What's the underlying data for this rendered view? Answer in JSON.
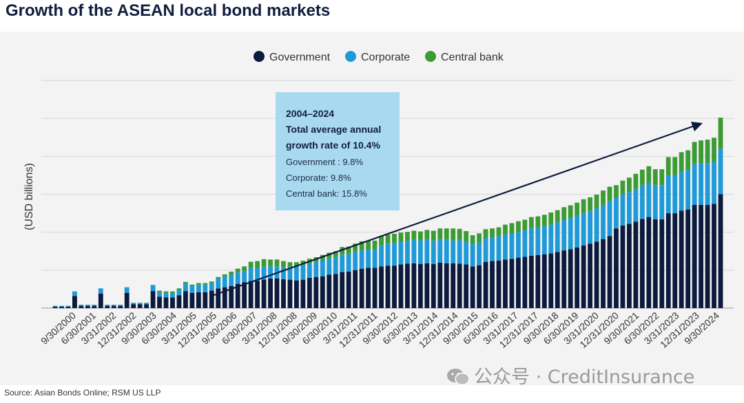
{
  "title": "Growth of the ASEAN local bond markets",
  "source": "Source: Asian Bonds Online; RSM US LLP",
  "watermark": "公众号 · CreditInsurance",
  "colors": {
    "government": "#0b1a3d",
    "corporate": "#1f9ad8",
    "central": "#3d9b35",
    "annotation_box": "#a9d9ef",
    "panel": "#f3f3f3",
    "grid": "#d6d6d6"
  },
  "annotation": {
    "heading": "2004–2024",
    "line2": "Total average annual",
    "line3": "growth rate of 10.4%",
    "gov": "Government : 9.8%",
    "corp": "Corporate: 9.8%",
    "cb": "Central bank: 15.8%"
  },
  "chart_data": {
    "type": "bar",
    "stacked": true,
    "ylabel": "(USD billions)",
    "ylim": [
      0,
      600
    ],
    "grid": true,
    "legend_position": "top-center",
    "series_names": [
      "Government",
      "Corporate",
      "Central bank"
    ],
    "x_tick_labels": [
      "9/30/2000",
      "6/30/2001",
      "3/31/2002",
      "12/31/2002",
      "9/30/2003",
      "6/30/2004",
      "3/31/2005",
      "12/31/2005",
      "9/30/2006",
      "6/30/2007",
      "3/31/2008",
      "12/31/2008",
      "9/30/2009",
      "6/30/2010",
      "3/31/2011",
      "12/31/2011",
      "9/30/2012",
      "6/30/2013",
      "3/31/2014",
      "12/31/2014",
      "9/30/2015",
      "6/30/2016",
      "3/31/2017",
      "12/31/2017",
      "9/30/2018",
      "6/30/2019",
      "3/31/2020",
      "12/31/2020",
      "9/30/2021",
      "6/30/2022",
      "3/31/2023",
      "12/31/2023",
      "9/30/2024"
    ],
    "government": [
      4,
      4,
      4,
      32,
      6,
      6,
      6,
      38,
      6,
      6,
      6,
      40,
      10,
      10,
      10,
      45,
      30,
      28,
      28,
      34,
      45,
      40,
      42,
      42,
      46,
      52,
      55,
      58,
      64,
      68,
      72,
      72,
      75,
      78,
      78,
      76,
      75,
      73,
      75,
      80,
      82,
      84,
      88,
      90,
      95,
      96,
      100,
      104,
      106,
      106,
      110,
      112,
      112,
      115,
      117,
      118,
      116,
      118,
      116,
      120,
      118,
      118,
      117,
      115,
      110,
      113,
      122,
      124,
      125,
      128,
      130,
      133,
      135,
      138,
      140,
      142,
      144,
      148,
      152,
      155,
      160,
      165,
      170,
      175,
      182,
      190,
      210,
      218,
      222,
      228,
      235,
      240,
      234,
      234,
      250,
      250,
      257,
      260,
      272,
      272,
      272,
      275,
      300
    ],
    "corporate": [
      2,
      2,
      2,
      12,
      3,
      3,
      3,
      14,
      3,
      3,
      3,
      15,
      4,
      4,
      4,
      16,
      12,
      12,
      12,
      14,
      20,
      18,
      20,
      20,
      20,
      26,
      28,
      30,
      30,
      30,
      34,
      34,
      34,
      32,
      32,
      32,
      34,
      36,
      38,
      38,
      40,
      42,
      42,
      44,
      46,
      46,
      48,
      48,
      48,
      48,
      56,
      58,
      60,
      60,
      60,
      62,
      62,
      62,
      62,
      62,
      62,
      60,
      62,
      60,
      58,
      60,
      62,
      62,
      64,
      66,
      66,
      68,
      70,
      72,
      72,
      74,
      76,
      78,
      80,
      82,
      84,
      86,
      86,
      88,
      90,
      92,
      80,
      82,
      84,
      86,
      88,
      90,
      90,
      90,
      100,
      100,
      102,
      104,
      108,
      110,
      110,
      112,
      120
    ],
    "central_bank": [
      0,
      0,
      0,
      0,
      0,
      0,
      0,
      0,
      0,
      0,
      0,
      0,
      0,
      0,
      0,
      0,
      4,
      4,
      4,
      4,
      4,
      4,
      4,
      4,
      4,
      4,
      6,
      8,
      10,
      12,
      16,
      18,
      20,
      18,
      18,
      16,
      12,
      12,
      12,
      12,
      12,
      14,
      16,
      16,
      20,
      20,
      22,
      24,
      24,
      24,
      24,
      24,
      24,
      24,
      24,
      24,
      24,
      26,
      26,
      28,
      30,
      32,
      30,
      28,
      24,
      24,
      24,
      24,
      24,
      26,
      28,
      28,
      28,
      30,
      30,
      30,
      32,
      32,
      34,
      34,
      34,
      36,
      36,
      36,
      38,
      38,
      34,
      36,
      38,
      40,
      42,
      44,
      42,
      42,
      48,
      48,
      52,
      52,
      58,
      60,
      62,
      62,
      82
    ]
  }
}
